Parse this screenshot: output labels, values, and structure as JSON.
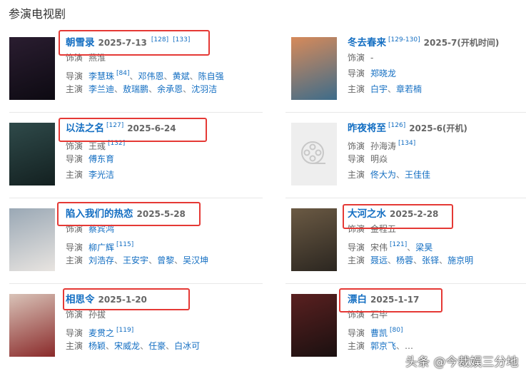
{
  "section_title": "参演电视剧",
  "labels": {
    "role": "饰演",
    "director": "导演",
    "cast": "主演"
  },
  "colors": {
    "link": "#136ec2",
    "highlight_box": "#e53935"
  },
  "cards": [
    {
      "title": "朝雪录",
      "refs_before_date": [],
      "date": "2025-7-13",
      "refs_after_date": [
        "[128]",
        "[133]"
      ],
      "role": [
        {
          "name": "燕淮",
          "link": false
        }
      ],
      "director": [
        {
          "name": "李慧珠",
          "ref": "[84]",
          "link": true
        },
        {
          "name": "邓伟恩",
          "link": true
        },
        {
          "name": "黄斌",
          "link": true
        },
        {
          "name": "陈自强",
          "link": true
        }
      ],
      "cast": [
        {
          "name": "李兰迪",
          "link": true
        },
        {
          "name": "敖瑞鹏",
          "link": true
        },
        {
          "name": "余承恩",
          "link": true
        },
        {
          "name": "沈羽洁",
          "link": true
        }
      ],
      "highlighted": true
    },
    {
      "title": "冬去春来",
      "refs_before_date": [
        "[129-130]"
      ],
      "date": "2025-7(开机时间)",
      "refs_after_date": [],
      "role": [
        {
          "name": "-",
          "link": false
        }
      ],
      "director": [
        {
          "name": "郑晓龙",
          "link": true
        }
      ],
      "cast": [
        {
          "name": "白宇",
          "link": true
        },
        {
          "name": "章若楠",
          "link": true
        }
      ],
      "highlighted": false
    },
    {
      "title": "以法之名",
      "refs_before_date": [
        "[127]"
      ],
      "date": "2025-6-24",
      "refs_after_date": [],
      "role": [
        {
          "name": "王彧",
          "ref": "[132]",
          "link": false
        }
      ],
      "director": [
        {
          "name": "傅东育",
          "link": true
        }
      ],
      "cast": [
        {
          "name": "李光洁",
          "link": true
        }
      ],
      "highlighted": true
    },
    {
      "title": "昨夜将至",
      "refs_before_date": [
        "[126]"
      ],
      "date": "2025-6(开机)",
      "refs_after_date": [],
      "role": [
        {
          "name": "孙海涛",
          "ref": "[134]",
          "link": false
        }
      ],
      "director": [
        {
          "name": "明焱",
          "link": false
        }
      ],
      "cast": [
        {
          "name": "佟大为",
          "link": true
        },
        {
          "name": "王佳佳",
          "link": true
        }
      ],
      "highlighted": false,
      "placeholder_poster": true
    },
    {
      "title": "陷入我们的热恋",
      "refs_before_date": [],
      "date": "2025-5-28",
      "refs_after_date": [],
      "role": [
        {
          "name": "蔡宾鸿",
          "link": true
        }
      ],
      "director": [
        {
          "name": "柳广辉",
          "ref": "[115]",
          "link": true
        }
      ],
      "cast": [
        {
          "name": "刘浩存",
          "link": true
        },
        {
          "name": "王安宇",
          "link": true
        },
        {
          "name": "曾黎",
          "link": true
        },
        {
          "name": "吴汉坤",
          "link": true
        }
      ],
      "highlighted": true
    },
    {
      "title": "大河之水",
      "refs_before_date": [],
      "date": "2025-2-28",
      "refs_after_date": [],
      "role": [
        {
          "name": "金程五",
          "link": false
        }
      ],
      "director": [
        {
          "name": "宋伟",
          "ref": "[121]",
          "link": false
        },
        {
          "name": "梁昊",
          "link": true
        }
      ],
      "cast": [
        {
          "name": "聂远",
          "link": true
        },
        {
          "name": "杨蓉",
          "link": true
        },
        {
          "name": "张铎",
          "link": true
        },
        {
          "name": "施京明",
          "link": true
        }
      ],
      "highlighted": true
    },
    {
      "title": "相思令",
      "refs_before_date": [],
      "date": "2025-1-20",
      "refs_after_date": [],
      "role": [
        {
          "name": "孙拔",
          "link": false
        }
      ],
      "director": [
        {
          "name": "麦贯之",
          "ref": "[119]",
          "link": true
        }
      ],
      "cast": [
        {
          "name": "杨颖",
          "link": true
        },
        {
          "name": "宋威龙",
          "link": true
        },
        {
          "name": "任豪",
          "link": true
        },
        {
          "name": "白冰可",
          "link": true
        }
      ],
      "highlighted": true
    },
    {
      "title": "漂白",
      "refs_before_date": [],
      "date": "2025-1-17",
      "refs_after_date": [],
      "role": [
        {
          "name": "石毕",
          "link": false
        }
      ],
      "director": [
        {
          "name": "曹凯",
          "ref": "[80]",
          "link": true
        }
      ],
      "cast": [
        {
          "name": "郭京飞",
          "link": true
        },
        {
          "name": "…",
          "link": false
        }
      ],
      "highlighted": true
    }
  ],
  "watermark": "头条 @今裁娱三分地"
}
